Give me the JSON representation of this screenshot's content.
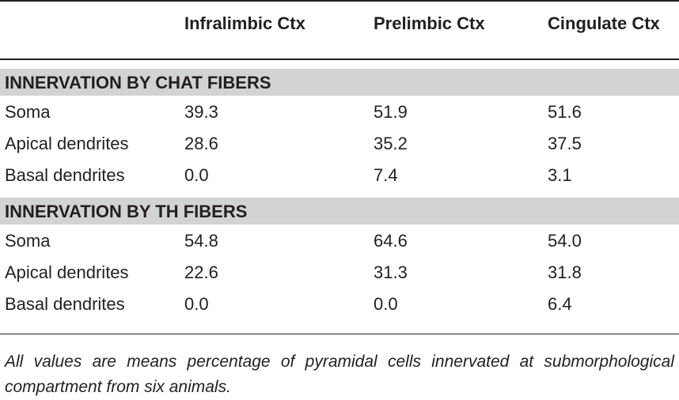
{
  "columns": [
    "Infralimbic Ctx",
    "Prelimbic Ctx",
    "Cingulate Ctx"
  ],
  "sections": [
    {
      "title": "INNERVATION BY CHAT FIBERS",
      "rows": [
        {
          "label": "Soma",
          "values": [
            "39.3",
            "51.9",
            "51.6"
          ]
        },
        {
          "label": "Apical dendrites",
          "values": [
            "28.6",
            "35.2",
            "37.5"
          ]
        },
        {
          "label": "Basal dendrites",
          "values": [
            "0.0",
            "7.4",
            "3.1"
          ]
        }
      ]
    },
    {
      "title": "INNERVATION BY TH FIBERS",
      "rows": [
        {
          "label": "Soma",
          "values": [
            "54.8",
            "64.6",
            "54.0"
          ]
        },
        {
          "label": "Apical dendrites",
          "values": [
            "22.6",
            "31.3",
            "31.8"
          ]
        },
        {
          "label": "Basal dendrites",
          "values": [
            "0.0",
            "0.0",
            "6.4"
          ]
        }
      ]
    }
  ],
  "footnote": "All values are means percentage of pyramidal cells innervated at submorphological compartment from six animals.",
  "colors": {
    "section_band": "#d1d3d4",
    "rule": "#231f20",
    "text": "#231f20"
  }
}
